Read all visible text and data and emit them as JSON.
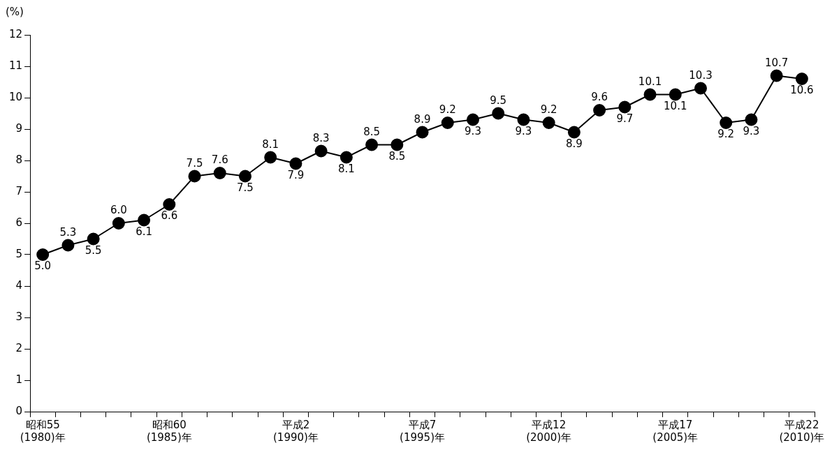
{
  "chart_data": {
    "type": "line",
    "ylabel": "(%)",
    "categories": [
      "昭和55\n(1980)年",
      null,
      null,
      null,
      null,
      "昭和60\n(1985)年",
      null,
      null,
      null,
      null,
      "平成2\n(1990)年",
      null,
      null,
      null,
      null,
      "平成7\n(1995)年",
      null,
      null,
      null,
      null,
      "平成12\n(2000)年",
      null,
      null,
      null,
      null,
      "平成17\n(2005)年",
      null,
      null,
      null,
      null,
      "平成22\n(2010)年"
    ],
    "series": [
      {
        "color": "#000000",
        "values": [
          5.0,
          5.3,
          5.5,
          6.0,
          6.1,
          6.6,
          7.5,
          7.6,
          7.5,
          8.1,
          7.9,
          8.3,
          8.1,
          8.5,
          8.5,
          8.9,
          9.2,
          9.3,
          9.5,
          9.3,
          9.2,
          8.9,
          9.6,
          9.7,
          10.1,
          10.1,
          10.3,
          9.2,
          9.3,
          10.7,
          10.6
        ],
        "value_labels": [
          "5.0",
          "5.3",
          "5.5",
          "6.0",
          "6.1",
          "6.6",
          "7.5",
          "7.6",
          "7.5",
          "8.1",
          "7.9",
          "8.3",
          "8.1",
          "8.5",
          "8.5",
          "8.9",
          "9.2",
          "9.3",
          "9.5",
          "9.3",
          "9.2",
          "8.9",
          "9.6",
          "9.7",
          "10.1",
          "10.1",
          "10.3",
          "9.2",
          "9.3",
          "10.7",
          "10.6"
        ]
      }
    ],
    "ylim": [
      0,
      12
    ],
    "yticks": [
      0,
      1,
      2,
      3,
      4,
      5,
      6,
      7,
      8,
      9,
      10,
      11,
      12
    ],
    "grid": false,
    "legend": false,
    "marker": "circle",
    "line_style": "solid"
  }
}
